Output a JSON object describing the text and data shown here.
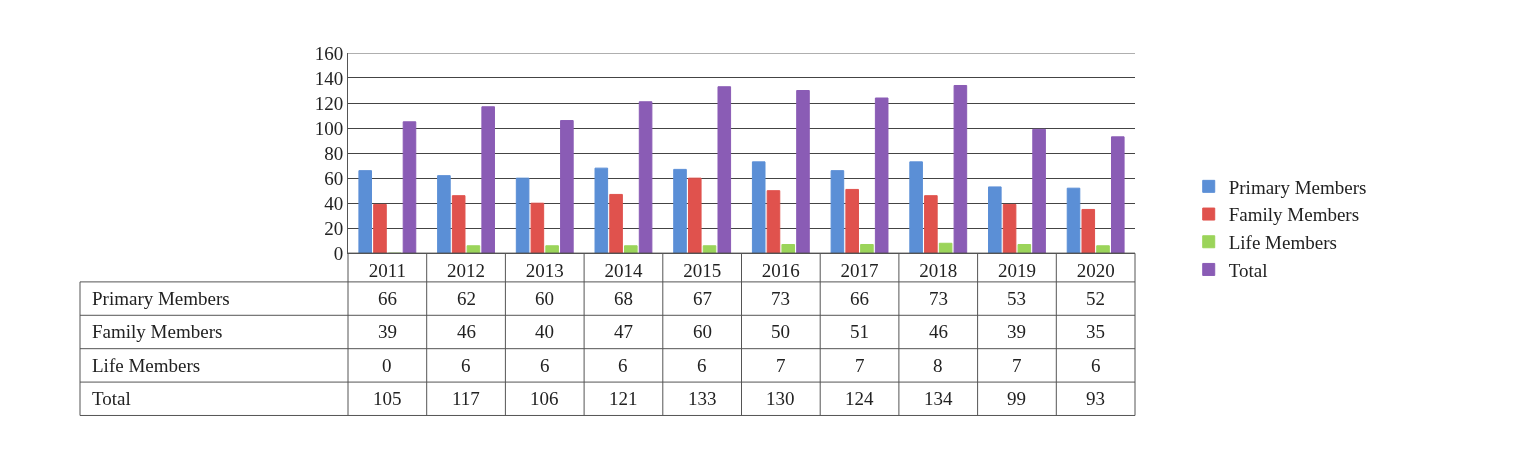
{
  "chart_data": {
    "type": "bar",
    "categories": [
      "2011",
      "2012",
      "2013",
      "2014",
      "2015",
      "2016",
      "2017",
      "2018",
      "2019",
      "2020"
    ],
    "series": [
      {
        "name": "Primary Members",
        "color": "#5b8fd6",
        "values": [
          66,
          62,
          60,
          68,
          67,
          73,
          66,
          73,
          53,
          52
        ]
      },
      {
        "name": "Family Members",
        "color": "#e0524d",
        "values": [
          39,
          46,
          40,
          47,
          60,
          50,
          51,
          46,
          39,
          35
        ]
      },
      {
        "name": "Life Members",
        "color": "#9bd45a",
        "values": [
          0,
          6,
          6,
          6,
          6,
          7,
          7,
          8,
          7,
          6
        ]
      },
      {
        "name": "Total",
        "color": "#8a5cb5",
        "values": [
          105,
          117,
          106,
          121,
          133,
          130,
          124,
          134,
          99,
          93
        ]
      }
    ],
    "ylim": [
      0,
      160
    ],
    "yticks": [
      0,
      20,
      40,
      60,
      80,
      100,
      120,
      140,
      160
    ],
    "grid": "y",
    "legend": "right",
    "data_labels": true
  }
}
